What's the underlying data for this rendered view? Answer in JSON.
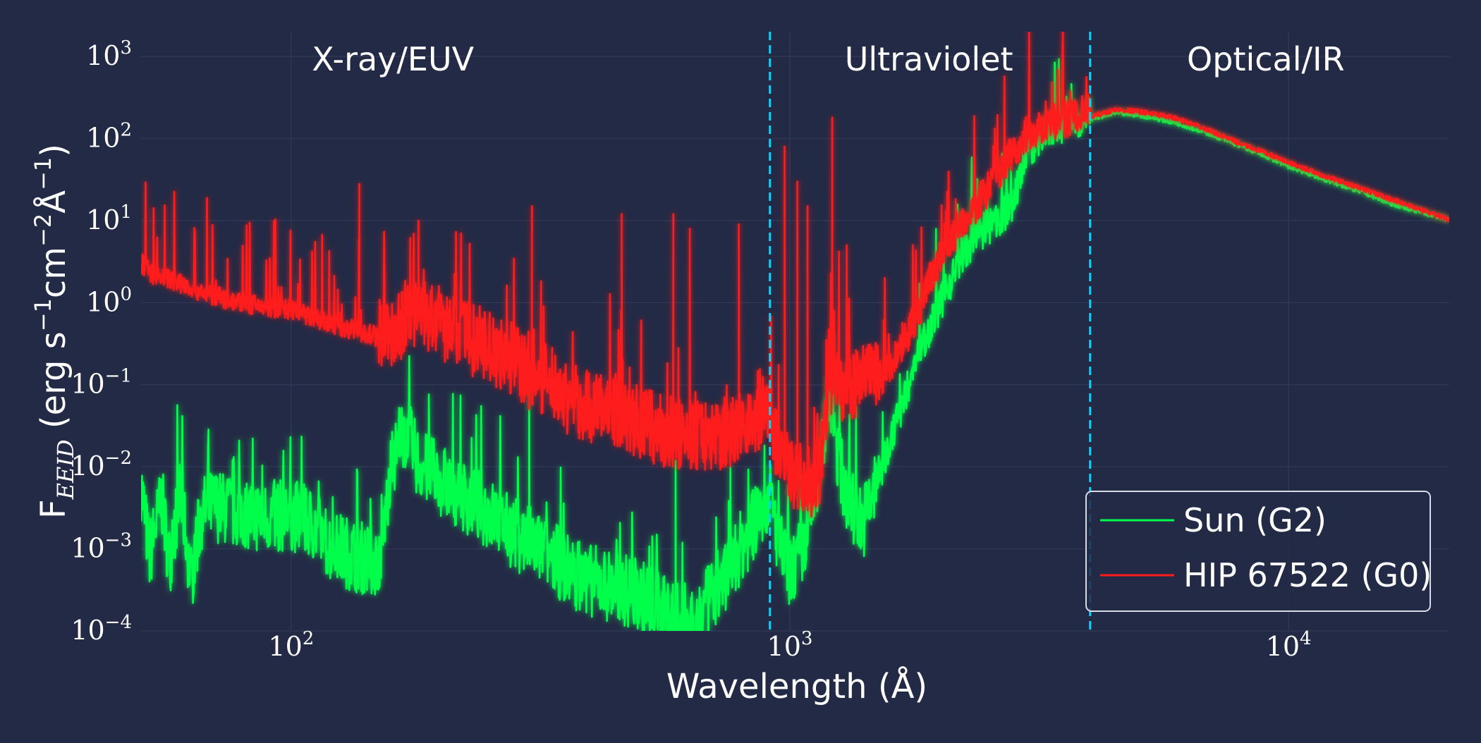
{
  "chart_data": {
    "type": "line",
    "title": "",
    "xlabel": "Wavelength (Å)",
    "ylabel": {
      "prefix": "F",
      "subscript": "EEID",
      "units_open": " (erg s",
      "exp1": "−1",
      "mid": "cm",
      "exp2": "−2",
      "ang": "Å",
      "exp3": "−1",
      "close": ")"
    },
    "x_scale": "log",
    "y_scale": "log",
    "xlim": [
      50,
      21000
    ],
    "ylim": [
      0.0001,
      2000
    ],
    "grid": true,
    "x_ticks": [
      {
        "value": 100,
        "base": "10",
        "exp": "2"
      },
      {
        "value": 1000,
        "base": "10",
        "exp": "3"
      },
      {
        "value": 10000,
        "base": "10",
        "exp": "4"
      }
    ],
    "y_ticks": [
      {
        "value": 0.0001,
        "base": "10",
        "exp": "−4"
      },
      {
        "value": 0.001,
        "base": "10",
        "exp": "−3"
      },
      {
        "value": 0.01,
        "base": "10",
        "exp": "−2"
      },
      {
        "value": 0.1,
        "base": "10",
        "exp": "−1"
      },
      {
        "value": 1,
        "base": "10",
        "exp": "0"
      },
      {
        "value": 10,
        "base": "10",
        "exp": "1"
      },
      {
        "value": 100,
        "base": "10",
        "exp": "2"
      },
      {
        "value": 1000,
        "base": "10",
        "exp": "3"
      }
    ],
    "region_boundaries": [
      912,
      4000
    ],
    "region_labels": [
      {
        "text": "X-ray/EUV",
        "x": 160
      },
      {
        "text": "Ultraviolet",
        "x": 1900
      },
      {
        "text": "Optical/IR",
        "x": 9000
      }
    ],
    "legend_position": "lower-right",
    "series": [
      {
        "name": "Sun (G2)",
        "color": "#00ff4c",
        "x": [
          50,
          52,
          55,
          57,
          60,
          63,
          66,
          70,
          75,
          80,
          90,
          100,
          110,
          120,
          135,
          150,
          160,
          170,
          180,
          200,
          225,
          250,
          275,
          300,
          330,
          360,
          400,
          450,
          500,
          550,
          600,
          650,
          700,
          750,
          800,
          850,
          912,
          950,
          1000,
          1050,
          1100,
          1150,
          1200,
          1250,
          1300,
          1400,
          1500,
          1600,
          1700,
          1800,
          2000,
          2200,
          2400,
          2600,
          2800,
          3000,
          3300,
          3600,
          4000,
          4500,
          5000,
          5500,
          6000,
          7000,
          8000,
          9000,
          10000,
          12000,
          14000,
          16000,
          18000,
          21000
        ],
        "y": [
          0.0045,
          0.0006,
          0.003,
          0.0005,
          0.004,
          0.0003,
          0.002,
          0.0025,
          0.0022,
          0.002,
          0.0018,
          0.0019,
          0.0015,
          0.0008,
          0.0006,
          0.0005,
          0.009,
          0.02,
          0.008,
          0.005,
          0.003,
          0.002,
          0.0012,
          0.0009,
          0.0006,
          0.0004,
          0.0003,
          0.00025,
          0.0002,
          0.00015,
          0.0001,
          0.0001,
          0.0002,
          0.0004,
          0.0008,
          0.0015,
          0.0035,
          0.0008,
          0.0004,
          0.0006,
          0.0015,
          0.008,
          0.05,
          0.01,
          0.003,
          0.0015,
          0.005,
          0.02,
          0.06,
          0.2,
          0.8,
          3,
          6,
          8,
          14,
          60,
          110,
          130,
          170,
          200,
          190,
          170,
          150,
          110,
          80,
          60,
          45,
          30,
          22,
          16,
          13,
          10
        ],
        "peaks": [
          [
            165,
            0.05
          ],
          [
            300,
            0.18
          ],
          [
            590,
            0.012
          ],
          [
            760,
            0.01
          ],
          [
            1216,
            0.4
          ],
          [
            1550,
            0.02
          ]
        ]
      },
      {
        "name": "HIP 67522 (G0)",
        "color": "#ff1a1a",
        "x": [
          50,
          53,
          56,
          60,
          65,
          70,
          75,
          80,
          90,
          100,
          110,
          120,
          130,
          140,
          150,
          160,
          170,
          180,
          200,
          220,
          250,
          280,
          300,
          330,
          360,
          400,
          450,
          500,
          550,
          600,
          650,
          700,
          750,
          800,
          850,
          912,
          950,
          1000,
          1050,
          1100,
          1150,
          1200,
          1300,
          1400,
          1500,
          1600,
          1700,
          1800,
          1900,
          2000,
          2200,
          2400,
          2600,
          2800,
          3000,
          3300,
          3600,
          4000,
          4500,
          5000,
          5500,
          6000,
          7000,
          8000,
          9000,
          10000,
          12000,
          14000,
          16000,
          18000,
          21000
        ],
        "y": [
          2.8,
          2.0,
          1.8,
          1.6,
          1.3,
          1.1,
          1.0,
          0.9,
          0.8,
          0.75,
          0.6,
          0.5,
          0.45,
          0.4,
          0.35,
          0.3,
          0.5,
          0.6,
          0.4,
          0.3,
          0.2,
          0.15,
          0.1,
          0.08,
          0.05,
          0.04,
          0.035,
          0.025,
          0.02,
          0.018,
          0.018,
          0.018,
          0.02,
          0.025,
          0.03,
          0.04,
          0.009,
          0.006,
          0.005,
          0.005,
          0.006,
          0.08,
          0.06,
          0.08,
          0.09,
          0.15,
          0.3,
          0.6,
          1.5,
          3,
          8,
          15,
          30,
          60,
          100,
          130,
          150,
          180,
          220,
          210,
          190,
          170,
          120,
          85,
          65,
          50,
          33,
          24,
          18,
          14,
          10
        ],
        "peaks": [
          [
            137,
            28
          ],
          [
            180,
            10
          ],
          [
            304,
            15
          ],
          [
            460,
            12
          ],
          [
            584,
            12
          ],
          [
            630,
            8
          ],
          [
            790,
            9
          ],
          [
            976,
            80
          ],
          [
            1035,
            30
          ],
          [
            1085,
            15
          ],
          [
            1216,
            180
          ],
          [
            1300,
            5
          ],
          [
            1550,
            2
          ]
        ]
      }
    ]
  }
}
